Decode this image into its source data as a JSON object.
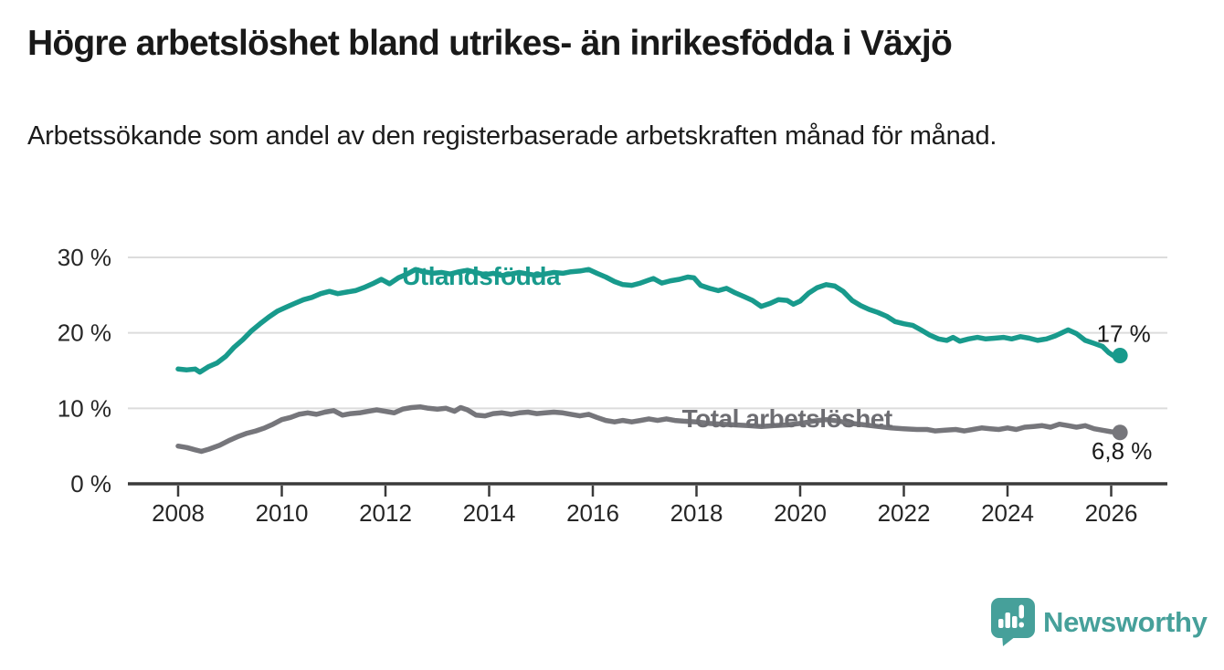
{
  "header": {
    "title": "Högre arbetslöshet bland utrikes- än inrikesfödda i Växjö",
    "subtitle": "Arbetssökande som andel av den registerbaserade arbetskraften månad för månad."
  },
  "chart_data": {
    "type": "line",
    "title": "Högre arbetslöshet bland utrikes- än inrikesfödda i Växjö",
    "subtitle": "Arbetssökande som andel av den registerbaserade arbetskraften månad för månad.",
    "unit": "%",
    "grid": "horizontal",
    "legend_position": "inline-labels",
    "x_axis": {
      "label": "",
      "range_years": [
        2008,
        2026.2
      ],
      "ticks": [
        {
          "value": 2008,
          "label": "2008"
        },
        {
          "value": 2010,
          "label": "2010"
        },
        {
          "value": 2012,
          "label": "2012"
        },
        {
          "value": 2014,
          "label": "2014"
        },
        {
          "value": 2016,
          "label": "2016"
        },
        {
          "value": 2018,
          "label": "2018"
        },
        {
          "value": 2020,
          "label": "2020"
        },
        {
          "value": 2022,
          "label": "2022"
        },
        {
          "value": 2024,
          "label": "2024"
        },
        {
          "value": 2026,
          "label": "2026"
        }
      ]
    },
    "y_axis": {
      "label": "",
      "range": [
        0,
        30
      ],
      "ticks": [
        {
          "value": 0,
          "label": "0 %"
        },
        {
          "value": 10,
          "label": "10 %"
        },
        {
          "value": 20,
          "label": "20 %"
        },
        {
          "value": 30,
          "label": "30 %"
        }
      ]
    },
    "series": [
      {
        "name": "Utlandsfödda",
        "color": "#189a8c",
        "label_color": "#189a8c",
        "label_pos": {
          "x": 2012.32,
          "y": 26.4
        },
        "end_label": "17 %",
        "end_value": 17,
        "points": [
          [
            2008.0,
            15.2
          ],
          [
            2008.17,
            15.1
          ],
          [
            2008.33,
            15.2
          ],
          [
            2008.42,
            14.8
          ],
          [
            2008.58,
            15.5
          ],
          [
            2008.75,
            16.0
          ],
          [
            2008.92,
            16.9
          ],
          [
            2009.08,
            18.1
          ],
          [
            2009.25,
            19.1
          ],
          [
            2009.42,
            20.3
          ],
          [
            2009.58,
            21.2
          ],
          [
            2009.75,
            22.1
          ],
          [
            2009.92,
            22.9
          ],
          [
            2010.08,
            23.4
          ],
          [
            2010.25,
            23.9
          ],
          [
            2010.42,
            24.4
          ],
          [
            2010.58,
            24.7
          ],
          [
            2010.75,
            25.2
          ],
          [
            2010.92,
            25.5
          ],
          [
            2011.08,
            25.2
          ],
          [
            2011.25,
            25.4
          ],
          [
            2011.42,
            25.6
          ],
          [
            2011.58,
            26.0
          ],
          [
            2011.75,
            26.5
          ],
          [
            2011.92,
            27.1
          ],
          [
            2012.08,
            26.5
          ],
          [
            2012.25,
            27.3
          ],
          [
            2012.42,
            27.8
          ],
          [
            2012.58,
            28.4
          ],
          [
            2012.75,
            28.1
          ],
          [
            2012.92,
            27.9
          ],
          [
            2013.08,
            28.0
          ],
          [
            2013.25,
            27.8
          ],
          [
            2013.42,
            28.1
          ],
          [
            2013.58,
            28.3
          ],
          [
            2013.75,
            28.0
          ],
          [
            2013.92,
            27.7
          ],
          [
            2014.08,
            27.9
          ],
          [
            2014.25,
            27.6
          ],
          [
            2014.42,
            27.8
          ],
          [
            2014.58,
            28.0
          ],
          [
            2014.75,
            27.8
          ],
          [
            2014.92,
            27.6
          ],
          [
            2015.08,
            27.8
          ],
          [
            2015.25,
            28.0
          ],
          [
            2015.42,
            27.9
          ],
          [
            2015.58,
            28.1
          ],
          [
            2015.75,
            28.2
          ],
          [
            2015.92,
            28.4
          ],
          [
            2016.08,
            27.9
          ],
          [
            2016.25,
            27.4
          ],
          [
            2016.42,
            26.8
          ],
          [
            2016.58,
            26.4
          ],
          [
            2016.75,
            26.3
          ],
          [
            2016.92,
            26.6
          ],
          [
            2017.08,
            27.0
          ],
          [
            2017.17,
            27.2
          ],
          [
            2017.33,
            26.6
          ],
          [
            2017.5,
            26.9
          ],
          [
            2017.67,
            27.1
          ],
          [
            2017.83,
            27.4
          ],
          [
            2017.95,
            27.3
          ],
          [
            2018.08,
            26.3
          ],
          [
            2018.25,
            25.9
          ],
          [
            2018.42,
            25.6
          ],
          [
            2018.58,
            25.9
          ],
          [
            2018.75,
            25.3
          ],
          [
            2018.92,
            24.8
          ],
          [
            2019.08,
            24.3
          ],
          [
            2019.25,
            23.5
          ],
          [
            2019.42,
            23.9
          ],
          [
            2019.58,
            24.4
          ],
          [
            2019.75,
            24.3
          ],
          [
            2019.87,
            23.8
          ],
          [
            2020.0,
            24.2
          ],
          [
            2020.17,
            25.3
          ],
          [
            2020.33,
            26.0
          ],
          [
            2020.5,
            26.4
          ],
          [
            2020.67,
            26.2
          ],
          [
            2020.83,
            25.5
          ],
          [
            2021.0,
            24.3
          ],
          [
            2021.17,
            23.6
          ],
          [
            2021.33,
            23.1
          ],
          [
            2021.5,
            22.7
          ],
          [
            2021.67,
            22.2
          ],
          [
            2021.83,
            21.5
          ],
          [
            2022.0,
            21.2
          ],
          [
            2022.17,
            21.0
          ],
          [
            2022.33,
            20.4
          ],
          [
            2022.5,
            19.7
          ],
          [
            2022.67,
            19.2
          ],
          [
            2022.83,
            19.0
          ],
          [
            2022.95,
            19.4
          ],
          [
            2023.08,
            18.9
          ],
          [
            2023.25,
            19.2
          ],
          [
            2023.42,
            19.4
          ],
          [
            2023.58,
            19.2
          ],
          [
            2023.75,
            19.3
          ],
          [
            2023.92,
            19.4
          ],
          [
            2024.08,
            19.2
          ],
          [
            2024.25,
            19.5
          ],
          [
            2024.42,
            19.3
          ],
          [
            2024.58,
            19.0
          ],
          [
            2024.75,
            19.2
          ],
          [
            2024.92,
            19.6
          ],
          [
            2025.08,
            20.1
          ],
          [
            2025.17,
            20.4
          ],
          [
            2025.33,
            19.9
          ],
          [
            2025.5,
            19.0
          ],
          [
            2025.67,
            18.6
          ],
          [
            2025.83,
            18.2
          ],
          [
            2025.95,
            17.4
          ],
          [
            2026.08,
            16.8
          ],
          [
            2026.17,
            17.0
          ]
        ]
      },
      {
        "name": "Total arbetslöshet",
        "color": "#76767b",
        "label_color": "#6d6d72",
        "label_pos": {
          "x": 2017.72,
          "y": 7.5
        },
        "end_label": "6,8 %",
        "end_value": 6.8,
        "points": [
          [
            2008.0,
            5.0
          ],
          [
            2008.17,
            4.8
          ],
          [
            2008.33,
            4.5
          ],
          [
            2008.45,
            4.3
          ],
          [
            2008.6,
            4.6
          ],
          [
            2008.8,
            5.1
          ],
          [
            2009.0,
            5.8
          ],
          [
            2009.17,
            6.3
          ],
          [
            2009.33,
            6.7
          ],
          [
            2009.5,
            7.0
          ],
          [
            2009.67,
            7.4
          ],
          [
            2009.83,
            7.9
          ],
          [
            2010.0,
            8.5
          ],
          [
            2010.17,
            8.8
          ],
          [
            2010.33,
            9.2
          ],
          [
            2010.5,
            9.4
          ],
          [
            2010.67,
            9.2
          ],
          [
            2010.83,
            9.5
          ],
          [
            2011.0,
            9.7
          ],
          [
            2011.17,
            9.1
          ],
          [
            2011.33,
            9.3
          ],
          [
            2011.5,
            9.4
          ],
          [
            2011.67,
            9.6
          ],
          [
            2011.83,
            9.8
          ],
          [
            2012.0,
            9.6
          ],
          [
            2012.17,
            9.4
          ],
          [
            2012.33,
            9.9
          ],
          [
            2012.5,
            10.1
          ],
          [
            2012.67,
            10.2
          ],
          [
            2012.83,
            10.0
          ],
          [
            2013.0,
            9.9
          ],
          [
            2013.17,
            10.0
          ],
          [
            2013.33,
            9.6
          ],
          [
            2013.45,
            10.1
          ],
          [
            2013.58,
            9.8
          ],
          [
            2013.75,
            9.1
          ],
          [
            2013.92,
            9.0
          ],
          [
            2014.08,
            9.3
          ],
          [
            2014.25,
            9.4
          ],
          [
            2014.42,
            9.2
          ],
          [
            2014.58,
            9.4
          ],
          [
            2014.75,
            9.5
          ],
          [
            2014.92,
            9.3
          ],
          [
            2015.08,
            9.4
          ],
          [
            2015.25,
            9.5
          ],
          [
            2015.42,
            9.4
          ],
          [
            2015.58,
            9.2
          ],
          [
            2015.75,
            9.0
          ],
          [
            2015.92,
            9.2
          ],
          [
            2016.08,
            8.8
          ],
          [
            2016.25,
            8.4
          ],
          [
            2016.42,
            8.2
          ],
          [
            2016.58,
            8.4
          ],
          [
            2016.75,
            8.2
          ],
          [
            2016.92,
            8.4
          ],
          [
            2017.08,
            8.6
          ],
          [
            2017.25,
            8.4
          ],
          [
            2017.42,
            8.6
          ],
          [
            2017.58,
            8.4
          ],
          [
            2017.75,
            8.3
          ],
          [
            2018.0,
            8.2
          ],
          [
            2018.25,
            8.0
          ],
          [
            2018.5,
            7.9
          ],
          [
            2018.75,
            7.8
          ],
          [
            2019.0,
            7.7
          ],
          [
            2019.25,
            7.6
          ],
          [
            2019.5,
            7.7
          ],
          [
            2019.75,
            7.8
          ],
          [
            2020.0,
            8.0
          ],
          [
            2020.25,
            8.3
          ],
          [
            2020.5,
            8.5
          ],
          [
            2020.75,
            8.3
          ],
          [
            2021.0,
            8.0
          ],
          [
            2021.25,
            7.8
          ],
          [
            2021.5,
            7.6
          ],
          [
            2021.75,
            7.4
          ],
          [
            2022.0,
            7.3
          ],
          [
            2022.25,
            7.2
          ],
          [
            2022.45,
            7.2
          ],
          [
            2022.6,
            7.0
          ],
          [
            2022.8,
            7.1
          ],
          [
            2023.0,
            7.2
          ],
          [
            2023.17,
            7.0
          ],
          [
            2023.33,
            7.2
          ],
          [
            2023.5,
            7.4
          ],
          [
            2023.67,
            7.3
          ],
          [
            2023.83,
            7.2
          ],
          [
            2024.0,
            7.4
          ],
          [
            2024.17,
            7.2
          ],
          [
            2024.33,
            7.5
          ],
          [
            2024.5,
            7.6
          ],
          [
            2024.67,
            7.7
          ],
          [
            2024.83,
            7.5
          ],
          [
            2025.0,
            7.9
          ],
          [
            2025.17,
            7.7
          ],
          [
            2025.33,
            7.5
          ],
          [
            2025.5,
            7.7
          ],
          [
            2025.67,
            7.3
          ],
          [
            2025.83,
            7.1
          ],
          [
            2026.0,
            6.9
          ],
          [
            2026.17,
            6.8
          ]
        ]
      }
    ],
    "colors": {
      "gridline": "#dcdcdc",
      "axis": "#3a3a3a",
      "tick_label": "#262626",
      "annotation": "#1b1b1b"
    }
  },
  "footer": {
    "brand": "Newsworthy",
    "brand_color": "#46a09a"
  }
}
